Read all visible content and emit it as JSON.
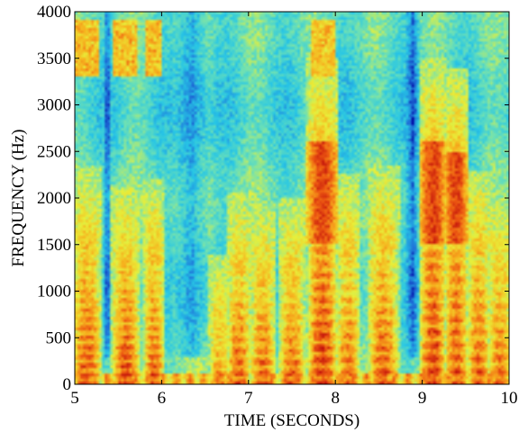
{
  "chart_data": {
    "type": "heatmap",
    "title": "",
    "xlabel": "TIME (SECONDS)",
    "ylabel": "FREQUENCY (Hz)",
    "xlim": [
      5,
      10
    ],
    "ylim": [
      0,
      4000
    ],
    "xticks": [
      5,
      6,
      7,
      8,
      9,
      10
    ],
    "yticks": [
      0,
      500,
      1000,
      1500,
      2000,
      2500,
      3000,
      3500,
      4000
    ],
    "colormap": [
      "#0000a0",
      "#1f6fd8",
      "#27c6e6",
      "#6fe1b4",
      "#e8f03a",
      "#f7b21e",
      "#ee5a12",
      "#c0100c"
    ],
    "energy_bands": [
      {
        "t_start": 5.0,
        "t_end": 5.28,
        "f_max": 1450,
        "peak": 0.95,
        "harmonic_spacing": 100
      },
      {
        "t_start": 5.45,
        "t_end": 5.72,
        "f_max": 1250,
        "peak": 1.0,
        "harmonic_spacing": 100
      },
      {
        "t_start": 5.82,
        "t_end": 6.0,
        "f_max": 1300,
        "peak": 0.9,
        "harmonic_spacing": 100
      },
      {
        "t_start": 6.58,
        "t_end": 6.75,
        "f_max": 500,
        "peak": 0.8,
        "harmonic_spacing": 110
      },
      {
        "t_start": 6.78,
        "t_end": 7.0,
        "f_max": 1150,
        "peak": 0.9,
        "harmonic_spacing": 120
      },
      {
        "t_start": 7.05,
        "t_end": 7.28,
        "f_max": 1050,
        "peak": 0.9,
        "harmonic_spacing": 120
      },
      {
        "t_start": 7.38,
        "t_end": 7.62,
        "f_max": 1100,
        "peak": 0.9,
        "harmonic_spacing": 120
      },
      {
        "t_start": 7.7,
        "t_end": 8.0,
        "f_max": 2600,
        "peak": 1.0,
        "harmonic_spacing": 130
      },
      {
        "t_start": 8.05,
        "t_end": 8.25,
        "f_max": 1350,
        "peak": 0.85,
        "harmonic_spacing": 130
      },
      {
        "t_start": 8.4,
        "t_end": 8.7,
        "f_max": 1450,
        "peak": 0.9,
        "harmonic_spacing": 130
      },
      {
        "t_start": 9.0,
        "t_end": 9.25,
        "f_max": 2600,
        "peak": 1.0,
        "harmonic_spacing": 140
      },
      {
        "t_start": 9.28,
        "t_end": 9.5,
        "f_max": 2500,
        "peak": 0.9,
        "harmonic_spacing": 140
      },
      {
        "t_start": 9.55,
        "t_end": 9.75,
        "f_max": 1400,
        "peak": 0.9,
        "harmonic_spacing": 140
      },
      {
        "t_start": 9.78,
        "t_end": 10.0,
        "f_max": 1100,
        "peak": 0.85,
        "harmonic_spacing": 140
      }
    ],
    "gaps": [
      {
        "t_start": 5.33,
        "t_end": 5.42
      },
      {
        "t_start": 6.15,
        "t_end": 6.55
      },
      {
        "t_start": 8.8,
        "t_end": 8.98
      }
    ]
  }
}
